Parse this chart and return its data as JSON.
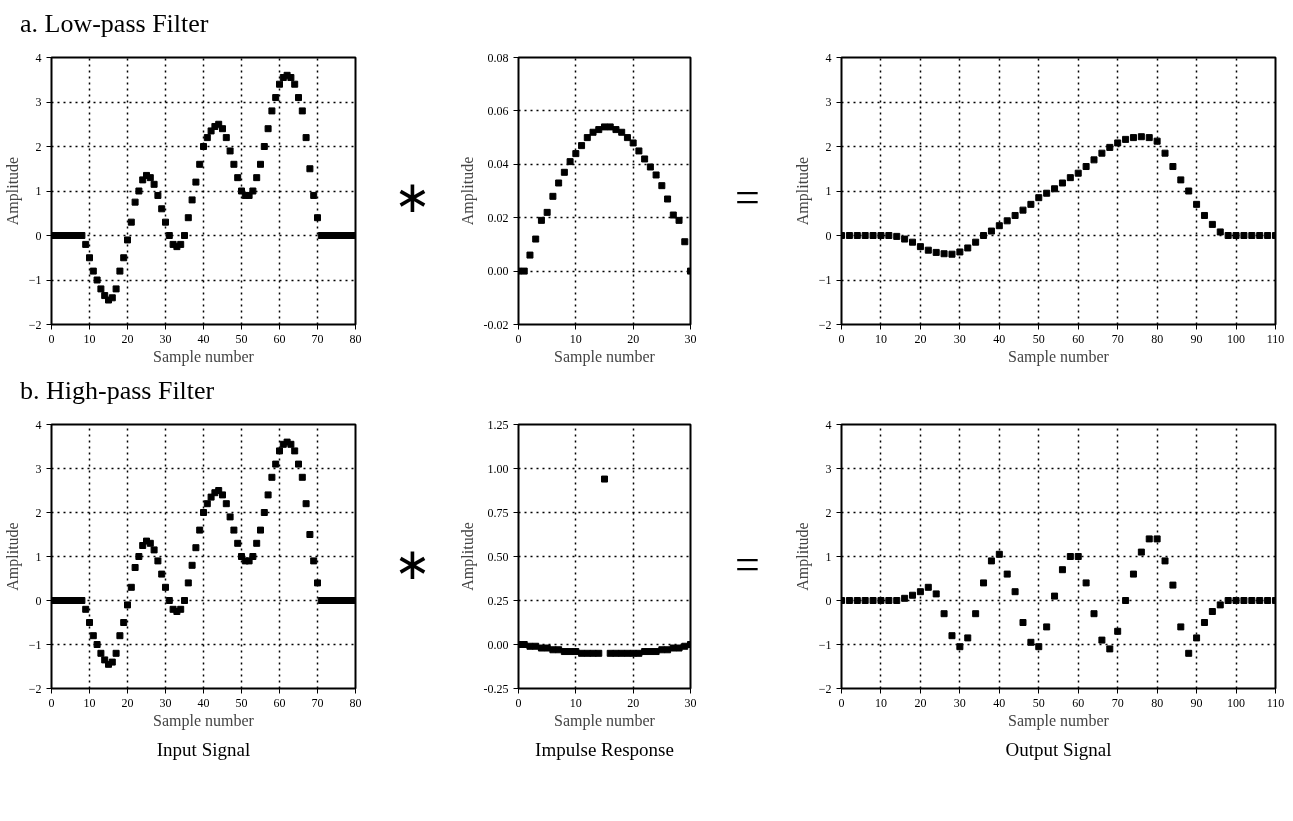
{
  "chart_data": [
    {
      "type": "scatter",
      "title": "a. Low-pass Filter",
      "xlabel": "Sample number",
      "ylabel": "Amplitude",
      "marker": "square",
      "grid": true,
      "xlim": [
        0,
        80
      ],
      "xticks": [
        0,
        10,
        20,
        30,
        40,
        50,
        60,
        70,
        80
      ],
      "ylim": [
        -2,
        4
      ],
      "yticks": [
        -2,
        -1,
        0,
        1,
        2,
        3,
        4
      ],
      "x": [
        0,
        1,
        2,
        3,
        4,
        5,
        6,
        7,
        8,
        9,
        10,
        11,
        12,
        13,
        14,
        15,
        16,
        17,
        18,
        19,
        20,
        21,
        22,
        23,
        24,
        25,
        26,
        27,
        28,
        29,
        30,
        31,
        32,
        33,
        34,
        35,
        36,
        37,
        38,
        39,
        40,
        41,
        42,
        43,
        44,
        45,
        46,
        47,
        48,
        49,
        50,
        51,
        52,
        53,
        54,
        55,
        56,
        57,
        58,
        59,
        60,
        61,
        62,
        63,
        64,
        65,
        66,
        67,
        68,
        69,
        70,
        71,
        72,
        73,
        74,
        75,
        76,
        77,
        78,
        79,
        80
      ],
      "series": [
        {
          "color": "#000000",
          "values": [
            0,
            0,
            0,
            0,
            0,
            0,
            0,
            0,
            0,
            -0.2,
            -0.5,
            -0.8,
            -1.0,
            -1.2,
            -1.35,
            -1.45,
            -1.4,
            -1.2,
            -0.8,
            -0.5,
            -0.1,
            0.3,
            0.75,
            1.0,
            1.25,
            1.35,
            1.3,
            1.15,
            0.9,
            0.6,
            0.3,
            0.0,
            -0.2,
            -0.25,
            -0.2,
            0.0,
            0.4,
            0.8,
            1.2,
            1.6,
            2.0,
            2.2,
            2.35,
            2.45,
            2.5,
            2.4,
            2.2,
            1.9,
            1.6,
            1.3,
            1.0,
            0.9,
            0.9,
            1.0,
            1.3,
            1.6,
            2.0,
            2.4,
            2.8,
            3.1,
            3.4,
            3.55,
            3.6,
            3.55,
            3.4,
            3.1,
            2.8,
            2.2,
            1.5,
            0.9,
            0.4,
            0,
            0,
            0,
            0,
            0,
            0,
            0,
            0,
            0,
            0
          ]
        }
      ]
    },
    {
      "type": "scatter",
      "xlabel": "Sample number",
      "ylabel": "Amplitude",
      "marker": "square",
      "grid": true,
      "annotations": [
        "∗"
      ],
      "xlim": [
        0,
        30
      ],
      "xticks": [
        0,
        10,
        20,
        30
      ],
      "ylim": [
        -0.02,
        0.08
      ],
      "yticks": [
        {
          "value": -0.02,
          "label": "-0.02"
        },
        {
          "value": 0,
          "label": "0.00"
        },
        {
          "value": 0.02,
          "label": "0.02"
        },
        {
          "value": 0.04,
          "label": "0.04"
        },
        {
          "value": 0.06,
          "label": "0.06"
        },
        {
          "value": 0.08,
          "label": "0.08"
        }
      ],
      "x": [
        0,
        1,
        2,
        3,
        4,
        5,
        6,
        7,
        8,
        9,
        10,
        11,
        12,
        13,
        14,
        15,
        16,
        17,
        18,
        19,
        20,
        21,
        22,
        23,
        24,
        25,
        26,
        27,
        28,
        29,
        30
      ],
      "series": [
        {
          "color": "#000000",
          "values": [
            0.0,
            0.0,
            0.006,
            0.012,
            0.019,
            0.022,
            0.028,
            0.033,
            0.037,
            0.041,
            0.044,
            0.047,
            0.05,
            0.052,
            0.053,
            0.054,
            0.054,
            0.053,
            0.052,
            0.05,
            0.048,
            0.045,
            0.042,
            0.039,
            0.036,
            0.032,
            0.027,
            0.021,
            0.019,
            0.011,
            0.0
          ]
        }
      ]
    },
    {
      "type": "scatter",
      "xlabel": "Sample number",
      "ylabel": "Amplitude",
      "marker": "square",
      "grid": true,
      "annotations": [
        "="
      ],
      "xlim": [
        0,
        110
      ],
      "xticks": [
        0,
        10,
        20,
        30,
        40,
        50,
        60,
        70,
        80,
        90,
        100,
        110
      ],
      "ylim": [
        -2,
        4
      ],
      "yticks": [
        -2,
        -1,
        0,
        1,
        2,
        3,
        4
      ],
      "x": [
        0,
        2,
        4,
        6,
        8,
        10,
        12,
        14,
        16,
        18,
        20,
        22,
        24,
        26,
        28,
        30,
        32,
        34,
        36,
        38,
        40,
        42,
        44,
        46,
        48,
        50,
        52,
        54,
        56,
        58,
        60,
        62,
        64,
        66,
        68,
        70,
        72,
        74,
        76,
        78,
        80,
        82,
        84,
        86,
        88,
        90,
        92,
        94,
        96,
        98,
        100,
        102,
        104,
        106,
        108,
        110
      ],
      "series": [
        {
          "color": "#000000",
          "values": [
            0,
            0,
            0,
            0,
            0,
            0,
            0,
            -0.02,
            -0.08,
            -0.15,
            -0.25,
            -0.33,
            -0.38,
            -0.41,
            -0.42,
            -0.37,
            -0.28,
            -0.15,
            0.0,
            0.1,
            0.22,
            0.33,
            0.45,
            0.57,
            0.7,
            0.85,
            0.95,
            1.05,
            1.18,
            1.3,
            1.4,
            1.55,
            1.7,
            1.85,
            1.98,
            2.08,
            2.16,
            2.2,
            2.22,
            2.2,
            2.12,
            1.85,
            1.55,
            1.25,
            1.0,
            0.7,
            0.45,
            0.25,
            0.08,
            0.0,
            0,
            0,
            0,
            0,
            0,
            0
          ]
        }
      ]
    },
    {
      "type": "scatter",
      "title": "b. High-pass Filter",
      "xlabel": "Sample number",
      "ylabel": "Amplitude",
      "marker": "square",
      "grid": true,
      "annotations": [
        "Input Signal"
      ],
      "xlim": [
        0,
        80
      ],
      "xticks": [
        0,
        10,
        20,
        30,
        40,
        50,
        60,
        70,
        80
      ],
      "ylim": [
        -2,
        4
      ],
      "yticks": [
        -2,
        -1,
        0,
        1,
        2,
        3,
        4
      ],
      "x": [
        0,
        1,
        2,
        3,
        4,
        5,
        6,
        7,
        8,
        9,
        10,
        11,
        12,
        13,
        14,
        15,
        16,
        17,
        18,
        19,
        20,
        21,
        22,
        23,
        24,
        25,
        26,
        27,
        28,
        29,
        30,
        31,
        32,
        33,
        34,
        35,
        36,
        37,
        38,
        39,
        40,
        41,
        42,
        43,
        44,
        45,
        46,
        47,
        48,
        49,
        50,
        51,
        52,
        53,
        54,
        55,
        56,
        57,
        58,
        59,
        60,
        61,
        62,
        63,
        64,
        65,
        66,
        67,
        68,
        69,
        70,
        71,
        72,
        73,
        74,
        75,
        76,
        77,
        78,
        79,
        80
      ],
      "series": [
        {
          "color": "#000000",
          "values": [
            0,
            0,
            0,
            0,
            0,
            0,
            0,
            0,
            0,
            -0.2,
            -0.5,
            -0.8,
            -1.0,
            -1.2,
            -1.35,
            -1.45,
            -1.4,
            -1.2,
            -0.8,
            -0.5,
            -0.1,
            0.3,
            0.75,
            1.0,
            1.25,
            1.35,
            1.3,
            1.15,
            0.9,
            0.6,
            0.3,
            0.0,
            -0.2,
            -0.25,
            -0.2,
            0.0,
            0.4,
            0.8,
            1.2,
            1.6,
            2.0,
            2.2,
            2.35,
            2.45,
            2.5,
            2.4,
            2.2,
            1.9,
            1.6,
            1.3,
            1.0,
            0.9,
            0.9,
            1.0,
            1.3,
            1.6,
            2.0,
            2.4,
            2.8,
            3.1,
            3.4,
            3.55,
            3.6,
            3.55,
            3.4,
            3.1,
            2.8,
            2.2,
            1.5,
            0.9,
            0.4,
            0,
            0,
            0,
            0,
            0,
            0,
            0,
            0,
            0,
            0
          ]
        }
      ]
    },
    {
      "type": "scatter",
      "xlabel": "Sample number",
      "ylabel": "Amplitude",
      "marker": "square",
      "grid": true,
      "annotations": [
        "∗",
        "Impulse Response"
      ],
      "xlim": [
        0,
        30
      ],
      "xticks": [
        0,
        10,
        20,
        30
      ],
      "ylim": [
        -0.25,
        1.25
      ],
      "yticks": [
        {
          "value": -0.25,
          "label": "-0.25"
        },
        {
          "value": 0,
          "label": "0.00"
        },
        {
          "value": 0.25,
          "label": "0.25"
        },
        {
          "value": 0.5,
          "label": "0.50"
        },
        {
          "value": 0.75,
          "label": "0.75"
        },
        {
          "value": 1,
          "label": "1.00"
        },
        {
          "value": 1.25,
          "label": "1.25"
        }
      ],
      "x": [
        0,
        1,
        2,
        3,
        4,
        5,
        6,
        7,
        8,
        9,
        10,
        11,
        12,
        13,
        14,
        15,
        16,
        17,
        18,
        19,
        20,
        21,
        22,
        23,
        24,
        25,
        26,
        27,
        28,
        29,
        30
      ],
      "series": [
        {
          "color": "#000000",
          "values": [
            0.0,
            0.0,
            -0.01,
            -0.01,
            -0.02,
            -0.02,
            -0.03,
            -0.03,
            -0.04,
            -0.04,
            -0.04,
            -0.05,
            -0.05,
            -0.05,
            -0.05,
            0.94,
            -0.05,
            -0.05,
            -0.05,
            -0.05,
            -0.05,
            -0.05,
            -0.04,
            -0.04,
            -0.04,
            -0.03,
            -0.03,
            -0.02,
            -0.02,
            -0.01,
            0.0
          ]
        }
      ]
    },
    {
      "type": "scatter",
      "xlabel": "Sample number",
      "ylabel": "Amplitude",
      "marker": "square",
      "grid": true,
      "annotations": [
        "=",
        "Output Signal"
      ],
      "xlim": [
        0,
        110
      ],
      "xticks": [
        0,
        10,
        20,
        30,
        40,
        50,
        60,
        70,
        80,
        90,
        100,
        110
      ],
      "ylim": [
        -2,
        4
      ],
      "yticks": [
        -2,
        -1,
        0,
        1,
        2,
        3,
        4
      ],
      "x": [
        0,
        2,
        4,
        6,
        8,
        10,
        12,
        14,
        16,
        18,
        20,
        22,
        24,
        26,
        28,
        30,
        32,
        34,
        36,
        38,
        40,
        42,
        44,
        46,
        48,
        50,
        52,
        54,
        56,
        58,
        60,
        62,
        64,
        66,
        68,
        70,
        72,
        74,
        76,
        78,
        80,
        82,
        84,
        86,
        88,
        90,
        92,
        94,
        96,
        98,
        100,
        102,
        104,
        106,
        108,
        110
      ],
      "series": [
        {
          "color": "#000000",
          "values": [
            0,
            0,
            0,
            0,
            0,
            0,
            0,
            0.0,
            0.05,
            0.12,
            0.2,
            0.3,
            0.15,
            -0.3,
            -0.8,
            -1.05,
            -0.85,
            -0.3,
            0.4,
            0.9,
            1.05,
            0.6,
            0.2,
            -0.5,
            -0.95,
            -1.05,
            -0.6,
            0.1,
            0.7,
            1.0,
            1.0,
            0.4,
            -0.3,
            -0.9,
            -1.1,
            -0.7,
            0.0,
            0.6,
            1.1,
            1.4,
            1.4,
            0.9,
            0.35,
            -0.6,
            -1.2,
            -0.85,
            -0.5,
            -0.25,
            -0.1,
            0.0,
            0,
            0,
            0,
            0,
            0,
            0
          ]
        }
      ]
    }
  ]
}
